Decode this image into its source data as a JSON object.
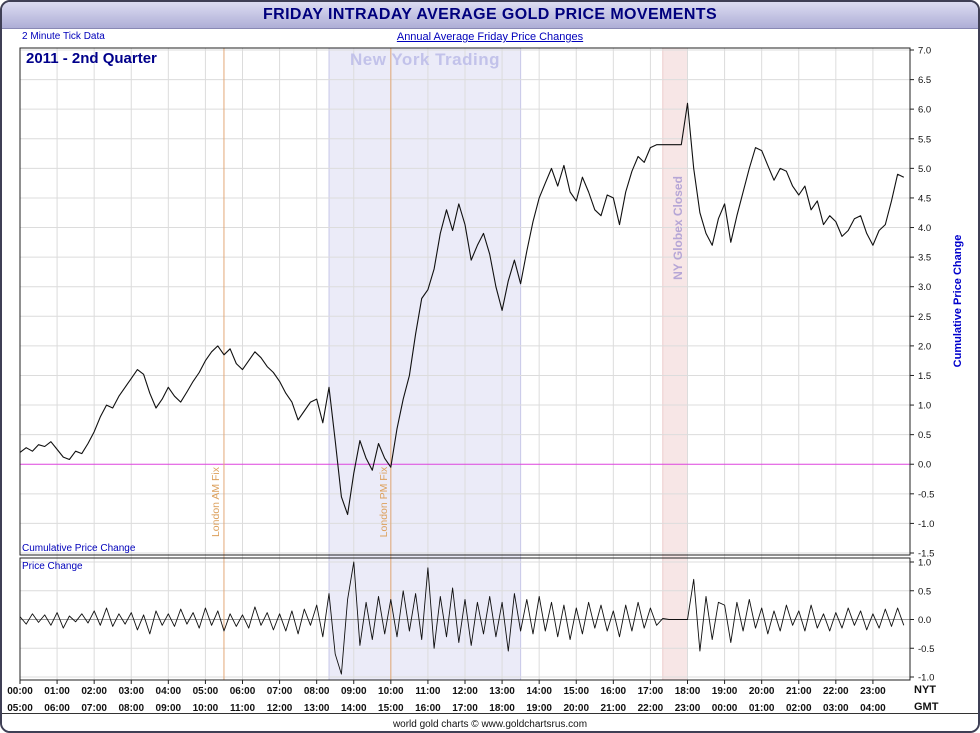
{
  "header": {
    "title": "FRIDAY INTRADAY AVERAGE GOLD PRICE MOVEMENTS",
    "tick_note": "2 Minute Tick Data",
    "subtitle": "Annual Average Friday Price Changes"
  },
  "labels": {
    "quarter": "2011 - 2nd Quarter",
    "ny_trading": "New York Trading",
    "globex_closed": "NY Globex Closed",
    "london_am": "London AM Fix",
    "london_pm": "London PM Fix",
    "cum_panel_label": "Cumulative Price Change",
    "price_panel_label": "Price Change",
    "right_axis_label": "Cumulative Price Change",
    "nyt": "NYT",
    "gmt": "GMT"
  },
  "footer": {
    "credit": "world gold charts © www.goldchartsrus.com"
  },
  "colors": {
    "grid": "#dcdcdc",
    "axis": "#222222",
    "series": "#101010",
    "zero_main": "#dd44dd",
    "zero_lower": "#999999",
    "title_navy": "#00007d",
    "label_blue": "#0000bb",
    "band_lavender": "#ebebf8",
    "band_pink": "#f7e6e6",
    "fix_orange": "#e2a878"
  },
  "chart_data": {
    "type": "line",
    "x_unit": "minutes_NYT",
    "x_interval_min": 10,
    "x_range_min": [
      0,
      1440
    ],
    "grid": true,
    "x_axis": {
      "nyt_labels": [
        "00:00",
        "01:00",
        "02:00",
        "03:00",
        "04:00",
        "05:00",
        "06:00",
        "07:00",
        "08:00",
        "09:00",
        "10:00",
        "11:00",
        "12:00",
        "13:00",
        "14:00",
        "15:00",
        "16:00",
        "17:00",
        "18:00",
        "19:00",
        "20:00",
        "21:00",
        "22:00",
        "23:00"
      ],
      "gmt_labels": [
        "05:00",
        "06:00",
        "07:00",
        "08:00",
        "09:00",
        "10:00",
        "11:00",
        "12:00",
        "13:00",
        "14:00",
        "15:00",
        "16:00",
        "17:00",
        "18:00",
        "19:00",
        "20:00",
        "21:00",
        "22:00",
        "23:00",
        "00:00",
        "01:00",
        "02:00",
        "03:00",
        "04:00"
      ]
    },
    "panels": [
      {
        "name": "cumulative_price_change",
        "ylabel": "Cumulative Price Change",
        "ylim": [
          -1.5,
          7.0
        ],
        "yticks": [
          7.0,
          6.5,
          6.0,
          5.5,
          5.0,
          4.5,
          4.0,
          3.5,
          3.0,
          2.5,
          2.0,
          1.5,
          1.0,
          0.5,
          0.0,
          -0.5,
          -1.0,
          -1.5
        ],
        "zero_line_color": "#dd44dd",
        "values": [
          0.2,
          0.28,
          0.22,
          0.33,
          0.3,
          0.38,
          0.25,
          0.12,
          0.08,
          0.22,
          0.18,
          0.35,
          0.55,
          0.8,
          1.0,
          0.95,
          1.15,
          1.3,
          1.45,
          1.6,
          1.52,
          1.2,
          0.95,
          1.1,
          1.3,
          1.15,
          1.05,
          1.22,
          1.4,
          1.55,
          1.75,
          1.9,
          2.0,
          1.85,
          1.95,
          1.7,
          1.6,
          1.75,
          1.9,
          1.8,
          1.65,
          1.55,
          1.4,
          1.2,
          1.05,
          0.75,
          0.9,
          1.05,
          1.1,
          0.7,
          1.3,
          0.4,
          -0.55,
          -0.85,
          -0.15,
          0.4,
          0.1,
          -0.1,
          0.35,
          0.1,
          -0.05,
          0.6,
          1.1,
          1.5,
          2.2,
          2.8,
          2.95,
          3.3,
          3.9,
          4.3,
          3.95,
          4.4,
          4.05,
          3.45,
          3.7,
          3.9,
          3.55,
          3.0,
          2.6,
          3.1,
          3.45,
          3.05,
          3.6,
          4.1,
          4.5,
          4.75,
          5.0,
          4.7,
          5.05,
          4.6,
          4.45,
          4.85,
          4.6,
          4.3,
          4.2,
          4.55,
          4.5,
          4.05,
          4.6,
          4.95,
          5.2,
          5.1,
          5.35,
          5.4,
          5.4,
          5.4,
          5.4,
          5.4,
          6.1,
          5.0,
          4.25,
          3.9,
          3.7,
          4.15,
          4.4,
          3.75,
          4.2,
          4.6,
          5.0,
          5.35,
          5.3,
          5.05,
          4.8,
          5.0,
          4.95,
          4.7,
          4.55,
          4.7,
          4.3,
          4.45,
          4.05,
          4.2,
          4.1,
          3.85,
          3.95,
          4.15,
          4.2,
          3.9,
          3.7,
          3.95,
          4.05,
          4.45,
          4.9,
          4.85
        ]
      },
      {
        "name": "price_change",
        "ylabel": "Price Change",
        "ylim": [
          -1.0,
          1.0
        ],
        "yticks": [
          1.0,
          0.5,
          0.0,
          -0.5,
          -1.0
        ],
        "zero_line_color": "#999999",
        "values": [
          0.05,
          -0.08,
          0.1,
          -0.05,
          0.08,
          -0.1,
          0.12,
          -0.15,
          0.06,
          -0.04,
          0.1,
          -0.06,
          0.15,
          -0.1,
          0.2,
          -0.12,
          0.1,
          -0.08,
          0.12,
          -0.18,
          0.08,
          -0.25,
          0.15,
          -0.1,
          0.1,
          -0.12,
          0.18,
          -0.08,
          0.12,
          -0.15,
          0.2,
          -0.1,
          0.15,
          -0.2,
          0.1,
          -0.12,
          0.08,
          -0.15,
          0.22,
          -0.1,
          0.12,
          -0.18,
          0.1,
          -0.2,
          0.15,
          -0.25,
          0.18,
          -0.1,
          0.25,
          -0.3,
          0.45,
          -0.6,
          -0.95,
          0.35,
          1.0,
          -0.45,
          0.3,
          -0.35,
          0.4,
          -0.25,
          0.35,
          -0.3,
          0.5,
          -0.2,
          0.45,
          -0.35,
          0.9,
          -0.5,
          0.4,
          -0.3,
          0.55,
          -0.4,
          0.35,
          -0.45,
          0.3,
          -0.25,
          0.4,
          -0.3,
          0.3,
          -0.55,
          0.45,
          -0.2,
          0.35,
          -0.25,
          0.4,
          -0.2,
          0.3,
          -0.3,
          0.25,
          -0.35,
          0.2,
          -0.25,
          0.3,
          -0.15,
          0.25,
          -0.2,
          0.15,
          -0.3,
          0.25,
          -0.2,
          0.3,
          -0.15,
          0.2,
          -0.1,
          0.02,
          0.0,
          0.0,
          0.0,
          0.0,
          0.7,
          -0.55,
          0.4,
          -0.35,
          0.3,
          0.25,
          -0.4,
          0.3,
          -0.2,
          0.35,
          -0.15,
          0.2,
          -0.25,
          0.15,
          -0.2,
          0.25,
          -0.1,
          0.15,
          -0.2,
          0.25,
          -0.15,
          0.1,
          -0.2,
          0.12,
          -0.15,
          0.2,
          -0.1,
          0.15,
          -0.18,
          0.1,
          -0.15,
          0.18,
          -0.12,
          0.2,
          -0.1
        ]
      }
    ],
    "annotations": {
      "bands": [
        {
          "name": "new-york-trading",
          "label": "New York Trading",
          "start_min": 500,
          "end_min": 810,
          "fill": "#ebebf8",
          "edge": "#c8c8e8"
        },
        {
          "name": "ny-globex-closed",
          "label": "NY Globex Closed",
          "start_min": 1040,
          "end_min": 1080,
          "fill": "#f7e6e6",
          "edge": "#eccccc"
        }
      ],
      "vlines": [
        {
          "name": "london-am-fix",
          "label": "London AM Fix",
          "min": 330,
          "color": "#e2a878"
        },
        {
          "name": "london-pm-fix",
          "label": "London PM Fix",
          "min": 600,
          "color": "#e2a878"
        }
      ]
    }
  }
}
